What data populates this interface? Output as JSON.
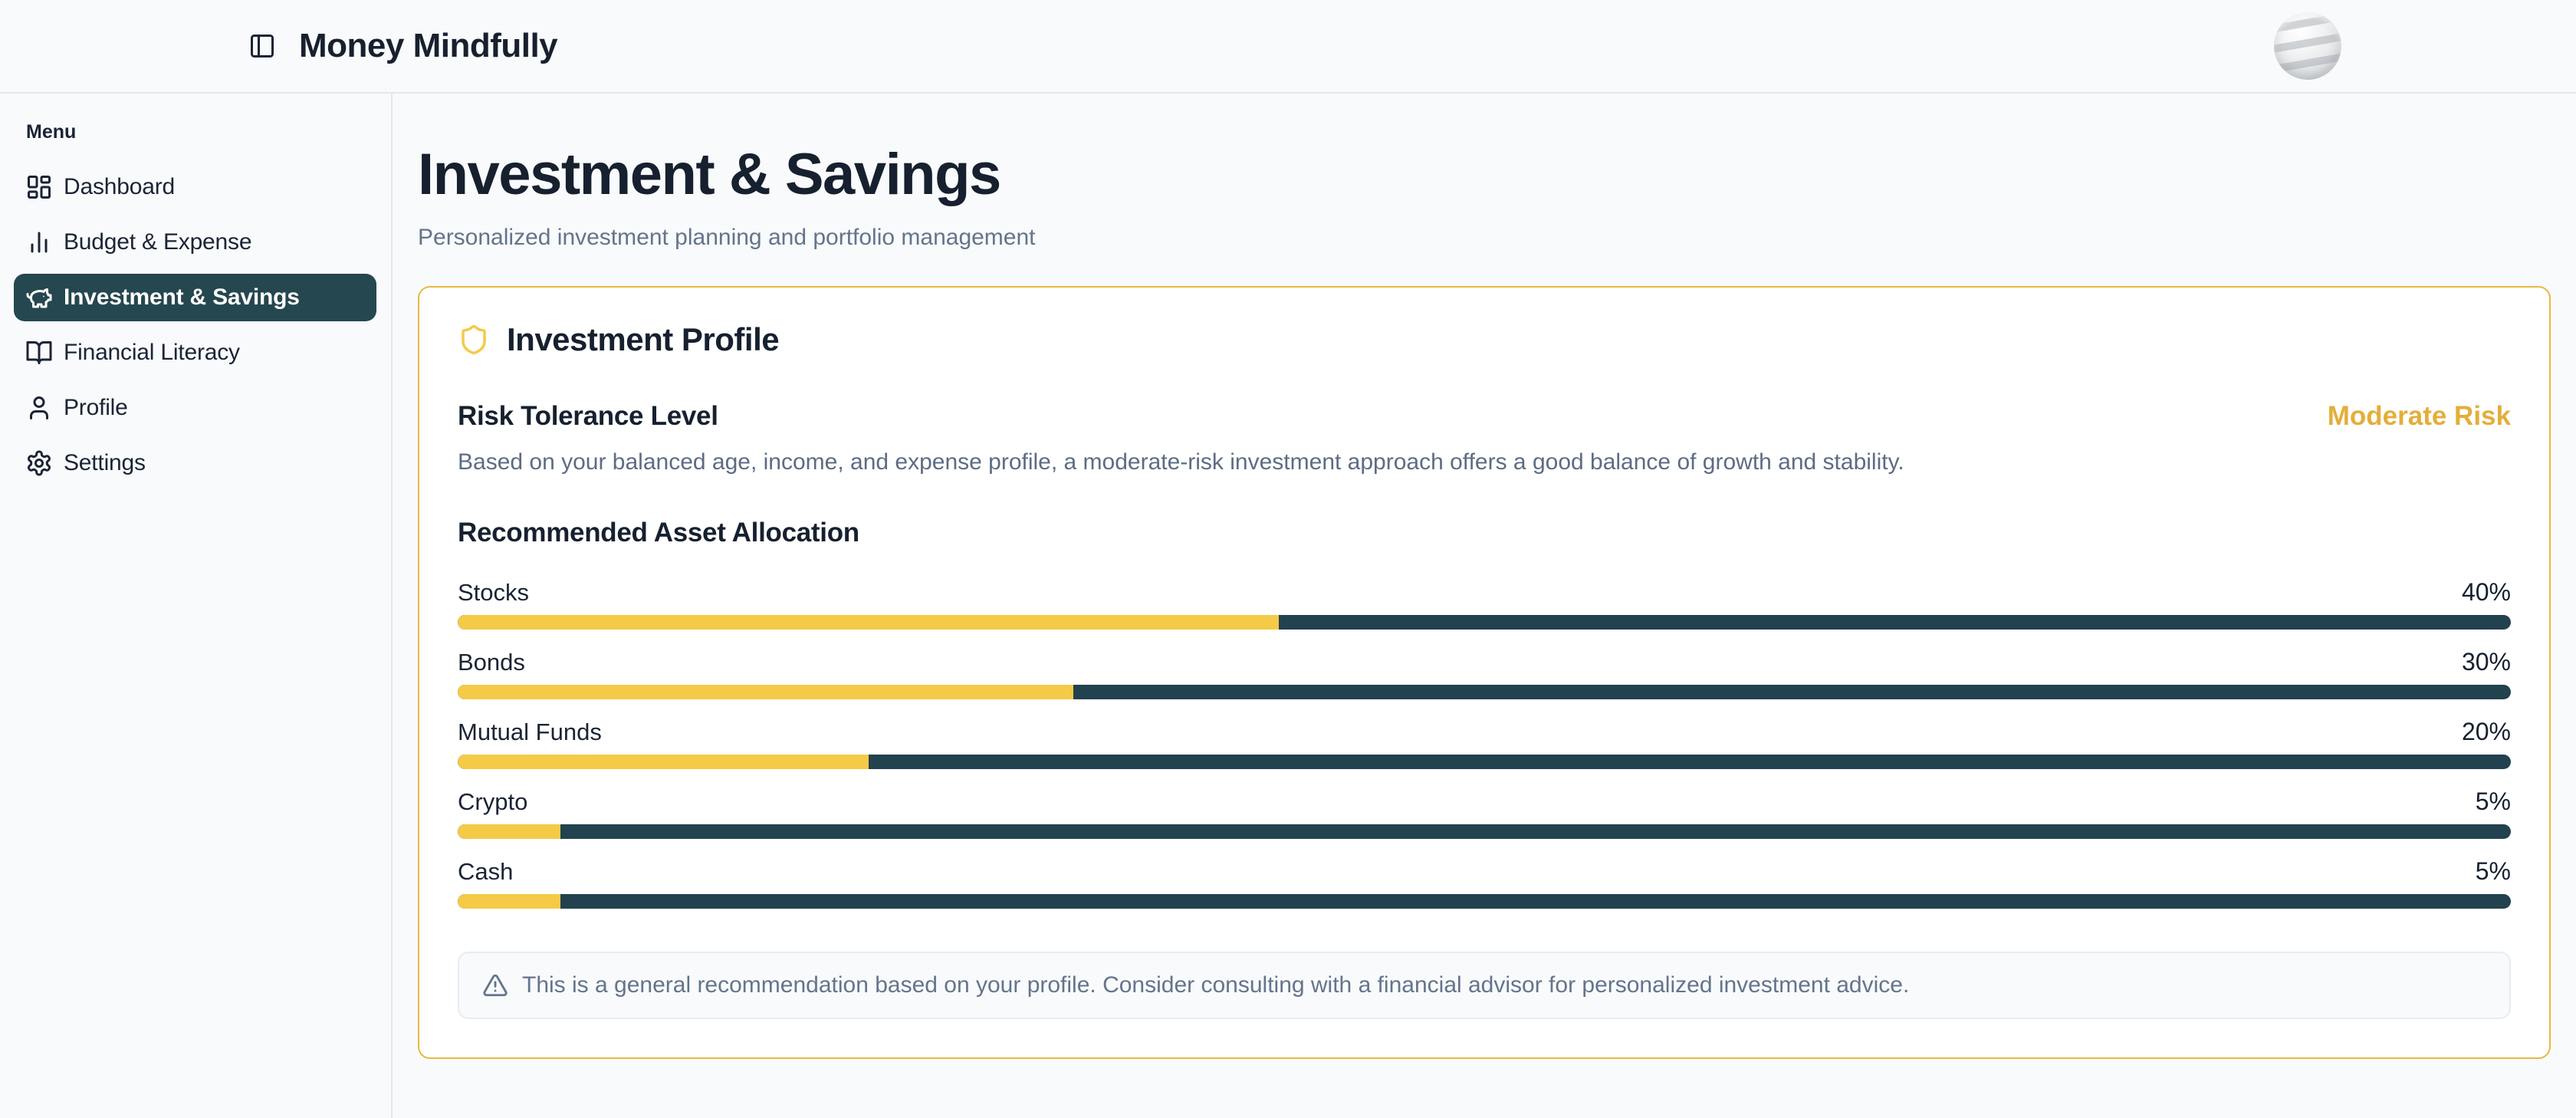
{
  "app": {
    "title": "Money Mindfully"
  },
  "sidebar": {
    "section": "Menu",
    "items": [
      {
        "label": "Dashboard",
        "icon": "dashboard-icon",
        "active": false
      },
      {
        "label": "Budget & Expense",
        "icon": "bar-chart-icon",
        "active": false
      },
      {
        "label": "Investment & Savings",
        "icon": "piggy-bank-icon",
        "active": true
      },
      {
        "label": "Financial Literacy",
        "icon": "book-open-icon",
        "active": false
      },
      {
        "label": "Profile",
        "icon": "user-icon",
        "active": false
      },
      {
        "label": "Settings",
        "icon": "gear-icon",
        "active": false
      }
    ]
  },
  "page": {
    "title": "Investment & Savings",
    "subtitle": "Personalized investment planning and portfolio management"
  },
  "card": {
    "title": "Investment Profile",
    "risk_heading": "Risk Tolerance Level",
    "risk_level": "Moderate Risk",
    "risk_description": "Based on your balanced age, income, and expense profile, a moderate-risk investment approach offers a good balance of growth and stability.",
    "allocation_heading": "Recommended Asset Allocation",
    "allocations": [
      {
        "label": "Stocks",
        "percent": 40,
        "display": "40%"
      },
      {
        "label": "Bonds",
        "percent": 30,
        "display": "30%"
      },
      {
        "label": "Mutual Funds",
        "percent": 20,
        "display": "20%"
      },
      {
        "label": "Crypto",
        "percent": 5,
        "display": "5%"
      },
      {
        "label": "Cash",
        "percent": 5,
        "display": "5%"
      }
    ],
    "disclaimer": "This is a general recommendation based on your profile. Consider consulting with a financial advisor for personalized investment advice."
  },
  "colors": {
    "accent_yellow": "#f5ca47",
    "dark_teal": "#21424e",
    "sidebar_active": "#25474f",
    "gold_text": "#e3ae3a",
    "card_border": "#e8ba41"
  }
}
